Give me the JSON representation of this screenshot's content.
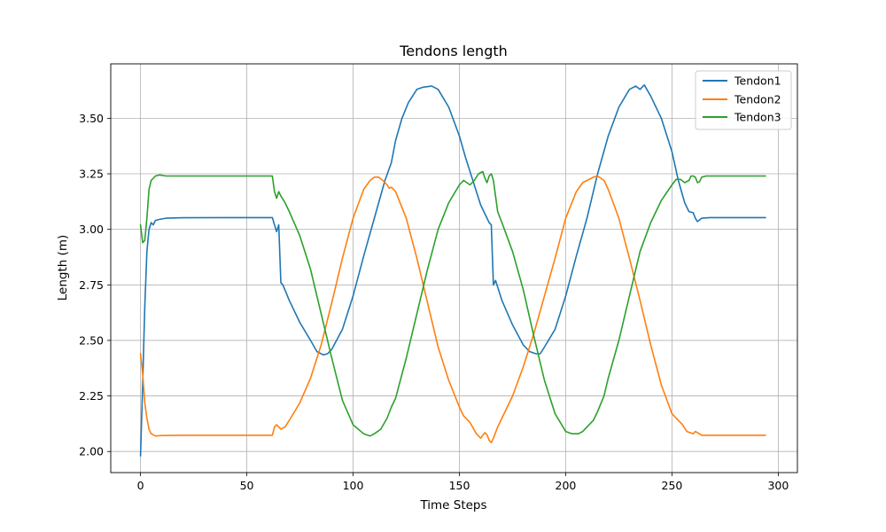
{
  "chart_data": {
    "type": "line",
    "title": "Tendons length",
    "xlabel": "Time Steps",
    "ylabel": "Length (m)",
    "xlim": [
      -14,
      309
    ],
    "ylim": [
      1.905,
      3.745
    ],
    "xticks": [
      0,
      50,
      100,
      150,
      200,
      250,
      300
    ],
    "yticks": [
      2.0,
      2.25,
      2.5,
      2.75,
      3.0,
      3.25,
      3.5
    ],
    "xtick_labels": [
      "0",
      "50",
      "100",
      "150",
      "200",
      "250",
      "300"
    ],
    "ytick_labels": [
      "2.00",
      "2.25",
      "2.50",
      "2.75",
      "3.00",
      "3.25",
      "3.50"
    ],
    "grid": true,
    "legend_position": "top-right",
    "series": [
      {
        "name": "Tendon1",
        "color": "#1f77b4",
        "points": [
          [
            0,
            1.98
          ],
          [
            1,
            2.3
          ],
          [
            2,
            2.65
          ],
          [
            3,
            2.9
          ],
          [
            4,
            3.0
          ],
          [
            5,
            3.03
          ],
          [
            6,
            3.02
          ],
          [
            7,
            3.04
          ],
          [
            9,
            3.045
          ],
          [
            12,
            3.05
          ],
          [
            20,
            3.052
          ],
          [
            40,
            3.053
          ],
          [
            62,
            3.053
          ],
          [
            63,
            3.02
          ],
          [
            64,
            2.99
          ],
          [
            65,
            3.02
          ],
          [
            66,
            2.76
          ],
          [
            67,
            2.75
          ],
          [
            70,
            2.68
          ],
          [
            75,
            2.58
          ],
          [
            80,
            2.5
          ],
          [
            83,
            2.45
          ],
          [
            86,
            2.435
          ],
          [
            88,
            2.44
          ],
          [
            90,
            2.46
          ],
          [
            95,
            2.55
          ],
          [
            100,
            2.7
          ],
          [
            105,
            2.88
          ],
          [
            110,
            3.05
          ],
          [
            115,
            3.22
          ],
          [
            118,
            3.3
          ],
          [
            120,
            3.4
          ],
          [
            123,
            3.5
          ],
          [
            126,
            3.57
          ],
          [
            130,
            3.63
          ],
          [
            133,
            3.64
          ],
          [
            137,
            3.645
          ],
          [
            140,
            3.63
          ],
          [
            145,
            3.55
          ],
          [
            150,
            3.42
          ],
          [
            153,
            3.32
          ],
          [
            156,
            3.23
          ],
          [
            158,
            3.17
          ],
          [
            160,
            3.11
          ],
          [
            162,
            3.07
          ],
          [
            164,
            3.03
          ],
          [
            165,
            3.02
          ],
          [
            166,
            2.75
          ],
          [
            167,
            2.77
          ],
          [
            170,
            2.68
          ],
          [
            175,
            2.57
          ],
          [
            180,
            2.48
          ],
          [
            183,
            2.45
          ],
          [
            186,
            2.44
          ],
          [
            188,
            2.44
          ],
          [
            190,
            2.47
          ],
          [
            195,
            2.55
          ],
          [
            200,
            2.7
          ],
          [
            205,
            2.88
          ],
          [
            210,
            3.05
          ],
          [
            215,
            3.25
          ],
          [
            220,
            3.42
          ],
          [
            225,
            3.55
          ],
          [
            230,
            3.63
          ],
          [
            233,
            3.645
          ],
          [
            235,
            3.63
          ],
          [
            237,
            3.65
          ],
          [
            240,
            3.6
          ],
          [
            245,
            3.5
          ],
          [
            250,
            3.35
          ],
          [
            253,
            3.22
          ],
          [
            256,
            3.12
          ],
          [
            258,
            3.08
          ],
          [
            260,
            3.075
          ],
          [
            261,
            3.05
          ],
          [
            262,
            3.035
          ],
          [
            264,
            3.05
          ],
          [
            268,
            3.053
          ],
          [
            280,
            3.053
          ],
          [
            294,
            3.053
          ]
        ]
      },
      {
        "name": "Tendon2",
        "color": "#ff7f0e",
        "points": [
          [
            0,
            2.44
          ],
          [
            1,
            2.35
          ],
          [
            2,
            2.22
          ],
          [
            3,
            2.15
          ],
          [
            4,
            2.1
          ],
          [
            5,
            2.08
          ],
          [
            7,
            2.07
          ],
          [
            10,
            2.072
          ],
          [
            20,
            2.073
          ],
          [
            40,
            2.073
          ],
          [
            62,
            2.073
          ],
          [
            63,
            2.11
          ],
          [
            64,
            2.12
          ],
          [
            65,
            2.11
          ],
          [
            66,
            2.1
          ],
          [
            68,
            2.11
          ],
          [
            70,
            2.14
          ],
          [
            75,
            2.22
          ],
          [
            80,
            2.33
          ],
          [
            85,
            2.48
          ],
          [
            90,
            2.67
          ],
          [
            95,
            2.87
          ],
          [
            100,
            3.05
          ],
          [
            105,
            3.18
          ],
          [
            108,
            3.22
          ],
          [
            110,
            3.235
          ],
          [
            112,
            3.235
          ],
          [
            114,
            3.22
          ],
          [
            116,
            3.2
          ],
          [
            117,
            3.185
          ],
          [
            118,
            3.19
          ],
          [
            120,
            3.17
          ],
          [
            125,
            3.05
          ],
          [
            130,
            2.87
          ],
          [
            135,
            2.67
          ],
          [
            140,
            2.47
          ],
          [
            145,
            2.32
          ],
          [
            150,
            2.2
          ],
          [
            152,
            2.16
          ],
          [
            155,
            2.13
          ],
          [
            158,
            2.08
          ],
          [
            160,
            2.06
          ],
          [
            162,
            2.085
          ],
          [
            163,
            2.075
          ],
          [
            164,
            2.05
          ],
          [
            165,
            2.04
          ],
          [
            166,
            2.06
          ],
          [
            168,
            2.11
          ],
          [
            170,
            2.15
          ],
          [
            175,
            2.25
          ],
          [
            180,
            2.38
          ],
          [
            185,
            2.53
          ],
          [
            190,
            2.7
          ],
          [
            195,
            2.87
          ],
          [
            200,
            3.05
          ],
          [
            205,
            3.17
          ],
          [
            208,
            3.21
          ],
          [
            210,
            3.22
          ],
          [
            213,
            3.235
          ],
          [
            215,
            3.24
          ],
          [
            218,
            3.22
          ],
          [
            220,
            3.18
          ],
          [
            225,
            3.05
          ],
          [
            230,
            2.87
          ],
          [
            235,
            2.68
          ],
          [
            240,
            2.48
          ],
          [
            245,
            2.3
          ],
          [
            250,
            2.17
          ],
          [
            253,
            2.14
          ],
          [
            255,
            2.12
          ],
          [
            257,
            2.09
          ],
          [
            260,
            2.08
          ],
          [
            261,
            2.09
          ],
          [
            262,
            2.085
          ],
          [
            264,
            2.073
          ],
          [
            270,
            2.073
          ],
          [
            294,
            2.073
          ]
        ]
      },
      {
        "name": "Tendon3",
        "color": "#2ca02c",
        "points": [
          [
            0,
            3.02
          ],
          [
            1,
            2.94
          ],
          [
            2,
            2.95
          ],
          [
            3,
            3.05
          ],
          [
            4,
            3.18
          ],
          [
            5,
            3.22
          ],
          [
            6,
            3.23
          ],
          [
            7,
            3.24
          ],
          [
            9,
            3.245
          ],
          [
            12,
            3.24
          ],
          [
            20,
            3.24
          ],
          [
            40,
            3.24
          ],
          [
            62,
            3.24
          ],
          [
            63,
            3.17
          ],
          [
            64,
            3.14
          ],
          [
            65,
            3.17
          ],
          [
            66,
            3.15
          ],
          [
            68,
            3.12
          ],
          [
            70,
            3.08
          ],
          [
            75,
            2.97
          ],
          [
            80,
            2.82
          ],
          [
            85,
            2.62
          ],
          [
            90,
            2.42
          ],
          [
            95,
            2.23
          ],
          [
            100,
            2.12
          ],
          [
            105,
            2.08
          ],
          [
            108,
            2.07
          ],
          [
            110,
            2.08
          ],
          [
            113,
            2.1
          ],
          [
            116,
            2.15
          ],
          [
            118,
            2.2
          ],
          [
            120,
            2.24
          ],
          [
            125,
            2.42
          ],
          [
            130,
            2.62
          ],
          [
            135,
            2.82
          ],
          [
            140,
            3.0
          ],
          [
            145,
            3.12
          ],
          [
            150,
            3.2
          ],
          [
            152,
            3.22
          ],
          [
            155,
            3.2
          ],
          [
            157,
            3.22
          ],
          [
            159,
            3.25
          ],
          [
            161,
            3.26
          ],
          [
            162,
            3.23
          ],
          [
            163,
            3.21
          ],
          [
            164,
            3.24
          ],
          [
            165,
            3.25
          ],
          [
            166,
            3.22
          ],
          [
            168,
            3.08
          ],
          [
            170,
            3.03
          ],
          [
            175,
            2.9
          ],
          [
            180,
            2.73
          ],
          [
            185,
            2.52
          ],
          [
            190,
            2.32
          ],
          [
            195,
            2.17
          ],
          [
            200,
            2.09
          ],
          [
            203,
            2.08
          ],
          [
            206,
            2.08
          ],
          [
            208,
            2.09
          ],
          [
            210,
            2.11
          ],
          [
            213,
            2.14
          ],
          [
            215,
            2.18
          ],
          [
            218,
            2.25
          ],
          [
            220,
            2.33
          ],
          [
            225,
            2.5
          ],
          [
            230,
            2.7
          ],
          [
            235,
            2.9
          ],
          [
            240,
            3.03
          ],
          [
            245,
            3.13
          ],
          [
            250,
            3.2
          ],
          [
            252,
            3.225
          ],
          [
            254,
            3.225
          ],
          [
            256,
            3.21
          ],
          [
            258,
            3.22
          ],
          [
            259,
            3.24
          ],
          [
            260,
            3.24
          ],
          [
            261,
            3.235
          ],
          [
            262,
            3.21
          ],
          [
            263,
            3.215
          ],
          [
            264,
            3.235
          ],
          [
            266,
            3.24
          ],
          [
            280,
            3.24
          ],
          [
            294,
            3.24
          ]
        ]
      }
    ]
  }
}
